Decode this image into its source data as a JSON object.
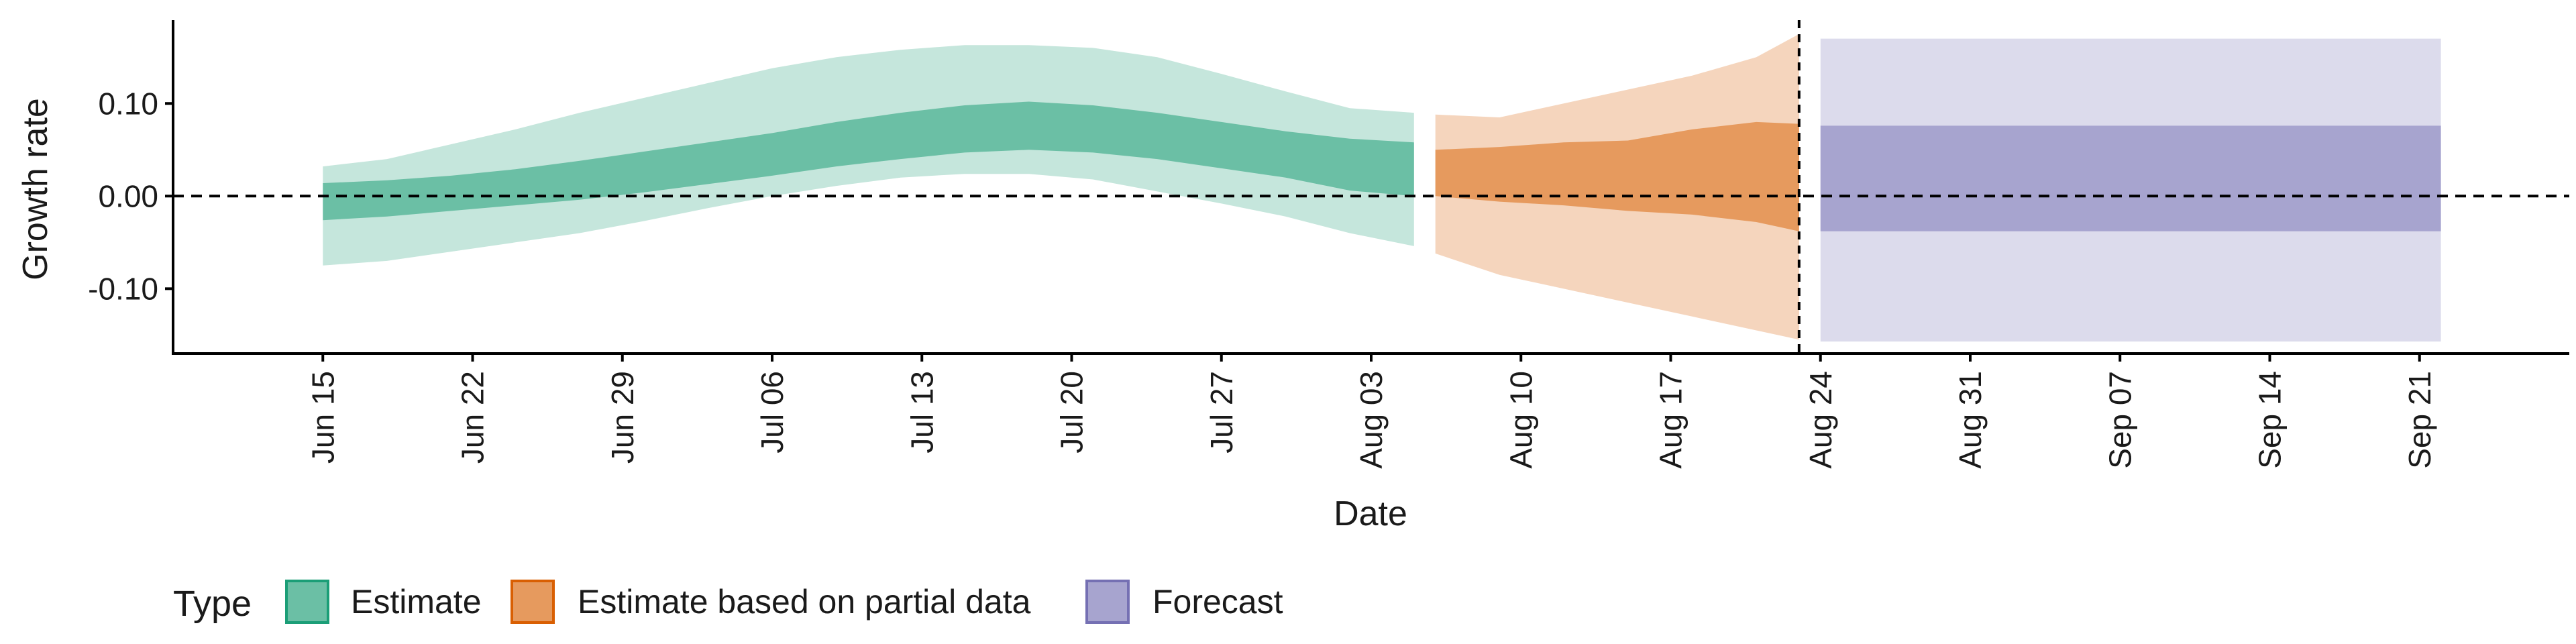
{
  "chart_data": {
    "type": "area",
    "title": "",
    "xlabel": "Date",
    "ylabel": "Growth rate",
    "x_axis": {
      "type": "date",
      "range": [
        "2020-06-08",
        "2020-09-28"
      ],
      "ticks": [
        "2020-06-15",
        "2020-06-22",
        "2020-06-29",
        "2020-07-06",
        "2020-07-13",
        "2020-07-20",
        "2020-07-27",
        "2020-08-03",
        "2020-08-10",
        "2020-08-17",
        "2020-08-24",
        "2020-08-31",
        "2020-09-07",
        "2020-09-14",
        "2020-09-21"
      ],
      "tick_labels": [
        "Jun 15",
        "Jun 22",
        "Jun 29",
        "Jul 06",
        "Jul 13",
        "Jul 20",
        "Jul 27",
        "Aug 03",
        "Aug 10",
        "Aug 17",
        "Aug 24",
        "Aug 31",
        "Sep 07",
        "Sep 14",
        "Sep 21"
      ]
    },
    "y_axis": {
      "range": [
        -0.17,
        0.19
      ],
      "ticks": [
        0.1,
        0.0,
        -0.1
      ],
      "tick_labels": [
        "0.10",
        "0.00",
        "-0.10"
      ]
    },
    "reference_lines": [
      {
        "orientation": "horizontal",
        "value": 0,
        "style": "dashed"
      },
      {
        "orientation": "vertical",
        "value": "2020-08-23",
        "style": "dashed"
      }
    ],
    "grid": false,
    "legend": {
      "title": "Type",
      "position": "bottom-left",
      "entries": [
        {
          "label": "Estimate",
          "fill": "#6bbfa5",
          "border": "#1b9e77"
        },
        {
          "label": "Estimate based on partial data",
          "fill": "#e69a5e",
          "border": "#d95f02"
        },
        {
          "label": "Forecast",
          "fill": "#a7a4cf",
          "border": "#7570b3"
        }
      ]
    },
    "series": [
      {
        "name": "Estimate",
        "color_inner": "#6bbfa5",
        "color_outer": "#c5e6dc",
        "x": [
          "2020-06-15",
          "2020-06-18",
          "2020-06-21",
          "2020-06-24",
          "2020-06-27",
          "2020-06-30",
          "2020-07-03",
          "2020-07-06",
          "2020-07-09",
          "2020-07-12",
          "2020-07-15",
          "2020-07-18",
          "2020-07-21",
          "2020-07-24",
          "2020-07-27",
          "2020-07-30",
          "2020-08-02",
          "2020-08-05"
        ],
        "outer_upper": [
          0.032,
          0.04,
          0.056,
          0.072,
          0.09,
          0.106,
          0.122,
          0.138,
          0.15,
          0.158,
          0.163,
          0.163,
          0.16,
          0.15,
          0.132,
          0.113,
          0.095,
          0.09
        ],
        "inner_upper": [
          0.014,
          0.017,
          0.022,
          0.029,
          0.038,
          0.048,
          0.058,
          0.068,
          0.08,
          0.09,
          0.098,
          0.102,
          0.098,
          0.09,
          0.08,
          0.07,
          0.062,
          0.058
        ],
        "inner_lower": [
          -0.026,
          -0.022,
          -0.016,
          -0.01,
          -0.004,
          0.004,
          0.013,
          0.022,
          0.032,
          0.04,
          0.047,
          0.05,
          0.047,
          0.04,
          0.03,
          0.02,
          0.006,
          0.0
        ],
        "outer_lower": [
          -0.075,
          -0.07,
          -0.06,
          -0.05,
          -0.04,
          -0.027,
          -0.013,
          0.0,
          0.011,
          0.02,
          0.024,
          0.024,
          0.018,
          0.005,
          -0.008,
          -0.022,
          -0.04,
          -0.054
        ]
      },
      {
        "name": "Estimate based on partial data",
        "color_inner": "#e69a5e",
        "color_outer": "#f5d5bd",
        "x": [
          "2020-08-06",
          "2020-08-09",
          "2020-08-12",
          "2020-08-15",
          "2020-08-18",
          "2020-08-21",
          "2020-08-23"
        ],
        "outer_upper": [
          0.088,
          0.085,
          0.1,
          0.115,
          0.13,
          0.15,
          0.175
        ],
        "inner_upper": [
          0.05,
          0.053,
          0.058,
          0.06,
          0.072,
          0.08,
          0.078
        ],
        "inner_lower": [
          0.0,
          -0.006,
          -0.01,
          -0.016,
          -0.02,
          -0.028,
          -0.038
        ],
        "outer_lower": [
          -0.062,
          -0.085,
          -0.1,
          -0.115,
          -0.13,
          -0.145,
          -0.155
        ]
      },
      {
        "name": "Forecast",
        "color_inner": "#a7a4cf",
        "color_outer": "#dcdbec",
        "x": [
          "2020-08-24",
          "2020-09-22"
        ],
        "outer_upper": [
          0.17,
          0.17
        ],
        "inner_upper": [
          0.076,
          0.076
        ],
        "inner_lower": [
          -0.038,
          -0.038
        ],
        "outer_lower": [
          -0.157,
          -0.157
        ]
      }
    ]
  }
}
